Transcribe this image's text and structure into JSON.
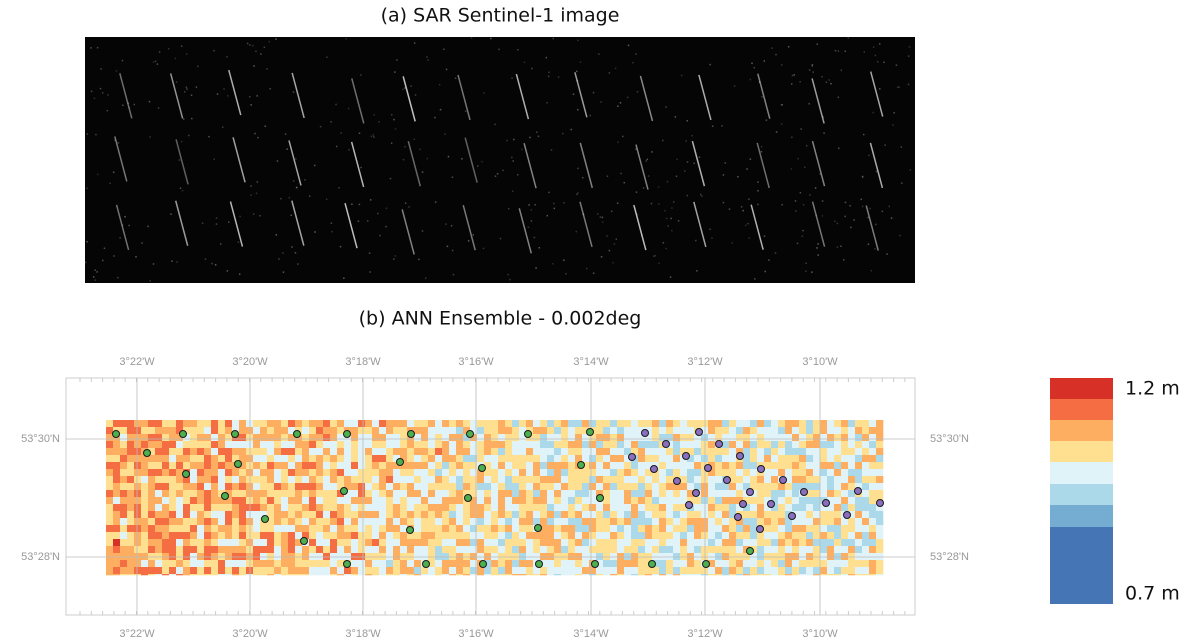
{
  "panel_a": {
    "title": "(a) SAR Sentinel-1 image"
  },
  "panel_b": {
    "title": "(b) ANN Ensemble - 0.002deg",
    "lon_labels": [
      "3°22'W",
      "3°20'W",
      "3°18'W",
      "3°16'W",
      "3°14'W",
      "3°12'W",
      "3°10'W"
    ],
    "lat_labels": [
      "53°30'N",
      "53°28'N"
    ]
  },
  "legend": {
    "top_label": "1.2 m",
    "bottom_label": "0.7 m",
    "colors": [
      "#d73027",
      "#f46d43",
      "#fdae61",
      "#fee090",
      "#e0f3f8",
      "#abd9e9",
      "#74add1",
      "#4575b4"
    ]
  }
}
